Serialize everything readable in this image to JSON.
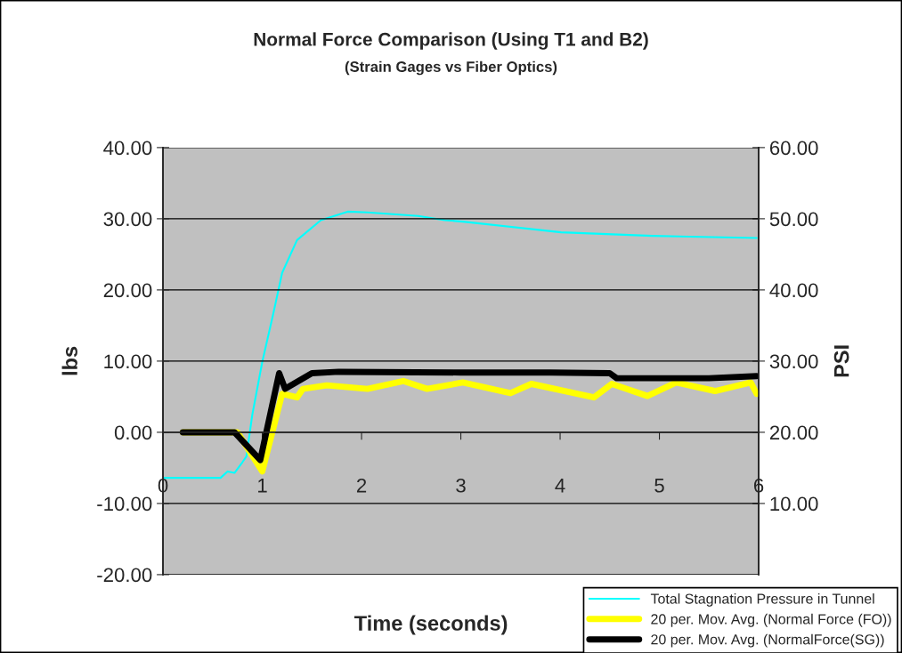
{
  "chart_data": {
    "type": "line",
    "title": "Normal Force Comparison (Using T1 and B2)",
    "subtitle": "(Strain Gages vs Fiber Optics)",
    "xlabel": "Time (seconds)",
    "ylabel": "lbs",
    "y2label": "PSI",
    "xlim": [
      0,
      6
    ],
    "xticks": [
      0,
      1,
      2,
      3,
      4,
      5,
      6
    ],
    "ylim": [
      -20,
      40
    ],
    "yticks": [
      {
        "value": -20,
        "label": "-20.00"
      },
      {
        "value": -10,
        "label": "-10.00"
      },
      {
        "value": 0,
        "label": "0.00"
      },
      {
        "value": 10,
        "label": "10.00"
      },
      {
        "value": 20,
        "label": "20.00"
      },
      {
        "value": 30,
        "label": "30.00"
      },
      {
        "value": 40,
        "label": "40.00"
      }
    ],
    "y2lim": [
      0,
      60
    ],
    "y2ticks": [
      {
        "value": 10,
        "label": "10.00"
      },
      {
        "value": 20,
        "label": "20.00"
      },
      {
        "value": 30,
        "label": "30.00"
      },
      {
        "value": 40,
        "label": "40.00"
      },
      {
        "value": 50,
        "label": "50.00"
      },
      {
        "value": 60,
        "label": "60.00"
      }
    ],
    "grid": "y",
    "legend": "bottom right",
    "series": [
      {
        "name": "Total Stagnation Pressure in Tunnel",
        "color": "#00ffff",
        "axis": "y2",
        "x": [
          0,
          0.58,
          0.65,
          0.72,
          0.8,
          0.84,
          0.9,
          1.0,
          1.11,
          1.2,
          1.35,
          1.59,
          1.86,
          2.06,
          2.57,
          2.84,
          3.02,
          4.01,
          4.93,
          5.98
        ],
        "values": [
          13.6,
          13.6,
          14.5,
          14.3,
          15.8,
          16.6,
          22.5,
          29.9,
          36.6,
          42.4,
          47,
          49.8,
          51,
          50.9,
          50.4,
          49.8,
          49.6,
          48.1,
          47.6,
          47.3
        ]
      },
      {
        "name": "20 per. Mov. Avg. (Normal Force (FO))",
        "color": "#ffff00",
        "x": [
          0.2,
          0.75,
          1.0,
          1.2,
          1.35,
          1.41,
          1.65,
          2.06,
          2.42,
          2.66,
          3.02,
          3.5,
          3.71,
          4.34,
          4.52,
          4.88,
          5.17,
          5.56,
          5.92,
          5.98
        ],
        "values": [
          0,
          0,
          -5.5,
          5.4,
          4.9,
          6.1,
          6.6,
          6.1,
          7.2,
          6.1,
          7.0,
          5.5,
          6.8,
          4.9,
          6.8,
          5.1,
          7.0,
          5.8,
          7.0,
          5.4
        ]
      },
      {
        "name": "20 per. Mov. Avg. (NormalForce(SG))",
        "color": "#000000",
        "x": [
          0.2,
          0.72,
          0.98,
          1.17,
          1.23,
          1.5,
          1.77,
          3.0,
          3.9,
          4.5,
          4.57,
          5.5,
          5.98
        ],
        "values": [
          0,
          0,
          -3.9,
          8.3,
          6.1,
          8.3,
          8.5,
          8.4,
          8.4,
          8.3,
          7.6,
          7.6,
          7.9
        ]
      }
    ]
  }
}
